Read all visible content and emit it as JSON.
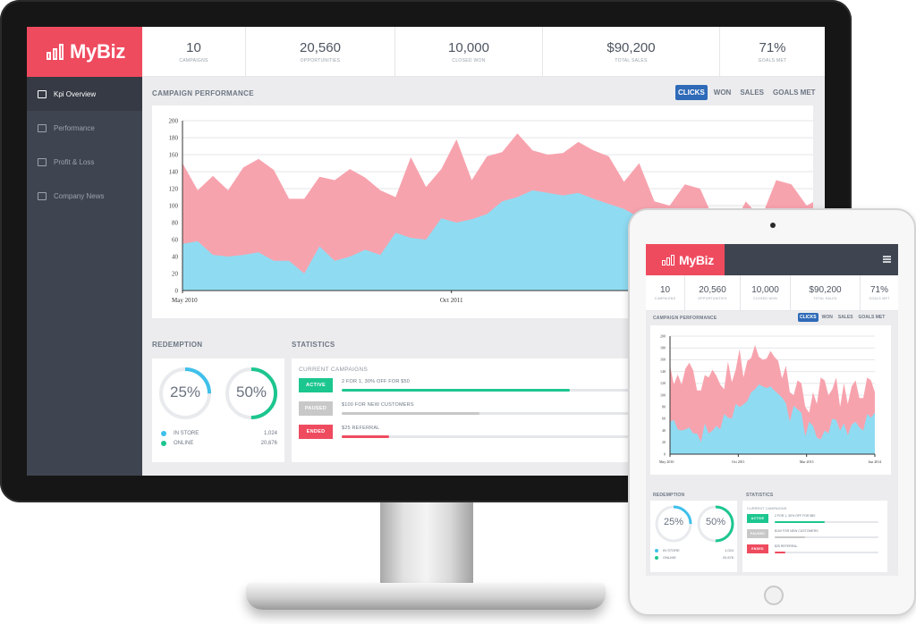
{
  "brand": {
    "name": "MyBiz",
    "color": "#ef4b5f"
  },
  "sidebar": {
    "items": [
      {
        "label": "Kpi Overview",
        "icon": "monitor-icon",
        "active": true
      },
      {
        "label": "Performance",
        "icon": "performance-icon",
        "active": false
      },
      {
        "label": "Profit & Loss",
        "icon": "profit-loss-icon",
        "active": false
      },
      {
        "label": "Company News",
        "icon": "news-icon",
        "active": false
      }
    ]
  },
  "kpis": [
    {
      "value": "10",
      "label": "CAMPAIGNS"
    },
    {
      "value": "20,560",
      "label": "OPPORTUNITIES"
    },
    {
      "value": "10,000",
      "label": "CLOSED WON"
    },
    {
      "value": "$90,200",
      "label": "TOTAL SALES"
    },
    {
      "value": "71%",
      "label": "GOALS MET"
    }
  ],
  "campaign_performance": {
    "title": "CAMPAIGN PERFORMANCE",
    "tabs": [
      {
        "label": "CLICKS",
        "active": true
      },
      {
        "label": "WON",
        "active": false
      },
      {
        "label": "SALES",
        "active": false
      },
      {
        "label": "GOALS MET",
        "active": false
      }
    ]
  },
  "chart_data": {
    "type": "area",
    "ylim": [
      0,
      200
    ],
    "yticks": [
      0,
      20,
      40,
      60,
      80,
      100,
      120,
      140,
      160,
      180,
      200
    ],
    "xtick_labels": [
      "May 2010",
      "Oct 2011",
      "Mar 2013",
      "Jun 2014"
    ],
    "grid": true,
    "colors": {
      "upper": "#f7a3ae",
      "lower": "#8fdcf2"
    },
    "series": [
      {
        "values": [
          150,
          118,
          135,
          118,
          145,
          155,
          142,
          108,
          108,
          134,
          130,
          143,
          133,
          118,
          110,
          157,
          122,
          143,
          178,
          130,
          158,
          163,
          185,
          165,
          160,
          162,
          175,
          165,
          158,
          128,
          150,
          105,
          100,
          125,
          120,
          80,
          70,
          105,
          85,
          130,
          125,
          100,
          110,
          130,
          80,
          120,
          85,
          115,
          125,
          95,
          95,
          130,
          125,
          105
        ]
      },
      {
        "values": [
          55,
          58,
          42,
          40,
          42,
          45,
          35,
          35,
          20,
          52,
          35,
          40,
          48,
          42,
          68,
          62,
          60,
          85,
          80,
          84,
          90,
          105,
          110,
          118,
          115,
          112,
          115,
          108,
          102,
          96,
          86,
          55,
          82,
          76,
          70,
          30,
          55,
          48,
          28,
          25,
          40,
          35,
          60,
          58,
          40,
          52,
          32,
          50,
          55,
          45,
          40,
          68,
          62,
          70
        ]
      }
    ]
  },
  "redemption": {
    "title": "REDEMPTION",
    "rings": [
      {
        "value": 25,
        "label": "25%",
        "color": "#3fc0ea"
      },
      {
        "value": 50,
        "label": "50%",
        "color": "#1cc68f"
      }
    ],
    "legend": [
      {
        "label": "IN STORE",
        "value": "1,024",
        "color": "#3fc0ea"
      },
      {
        "label": "ONLINE",
        "value": "20,676",
        "color": "#1cc68f"
      }
    ]
  },
  "statistics": {
    "title": "STATISTICS",
    "subtitle": "CURRENT CAMPAIGNS",
    "campaigns": [
      {
        "status": "ACTIVE",
        "name": "2 FOR 1, 30% OFF FOR $50",
        "progress": 0.48,
        "color": "#1cc68f"
      },
      {
        "status": "PAUSED",
        "name": "$100 FOR NEW CUSTOMERS",
        "progress": 0.29,
        "color": "#c8c8c8"
      },
      {
        "status": "ENDED",
        "name": "$25 REFERRAL",
        "progress": 0.1,
        "color": "#ef4b5f"
      }
    ]
  }
}
